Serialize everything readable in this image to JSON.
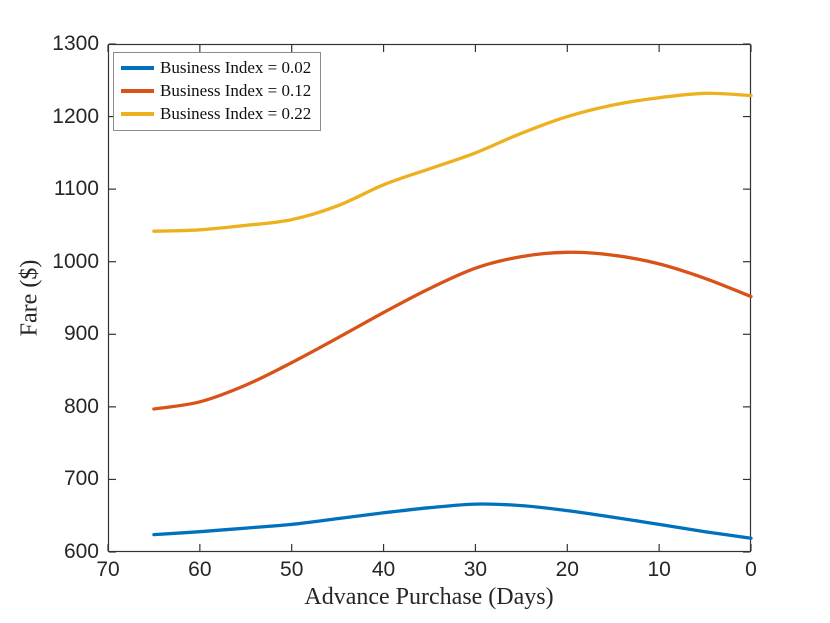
{
  "chart_data": {
    "type": "line",
    "title": "",
    "xlabel": "Advance Purchase (Days)",
    "ylabel": "Fare ($)",
    "xlim": [
      70,
      0
    ],
    "ylim": [
      600,
      1300
    ],
    "x_axis_reversed": true,
    "grid": false,
    "legend_position": "top-left",
    "axis_color": "#333333",
    "tick_label_color": "#262626",
    "x_ticks": [
      70,
      60,
      50,
      40,
      30,
      20,
      10,
      0
    ],
    "y_ticks": [
      600,
      700,
      800,
      900,
      1000,
      1100,
      1200,
      1300
    ],
    "x": [
      65,
      60,
      55,
      50,
      45,
      40,
      35,
      30,
      25,
      20,
      15,
      10,
      5,
      0
    ],
    "series": [
      {
        "name": "Business Index = 0.02",
        "color": "#0072BD",
        "values": [
          624,
          628,
          633,
          638,
          646,
          654,
          661,
          666,
          664,
          657,
          648,
          638,
          628,
          619
        ]
      },
      {
        "name": "Business Index = 0.12",
        "color": "#D95319",
        "values": [
          797,
          807,
          830,
          861,
          895,
          930,
          963,
          991,
          1007,
          1013,
          1009,
          997,
          977,
          952
        ]
      },
      {
        "name": "Business Index = 0.22",
        "color": "#EDB120",
        "values": [
          1042,
          1044,
          1050,
          1058,
          1077,
          1106,
          1128,
          1150,
          1177,
          1200,
          1216,
          1226,
          1232,
          1229
        ]
      }
    ]
  }
}
